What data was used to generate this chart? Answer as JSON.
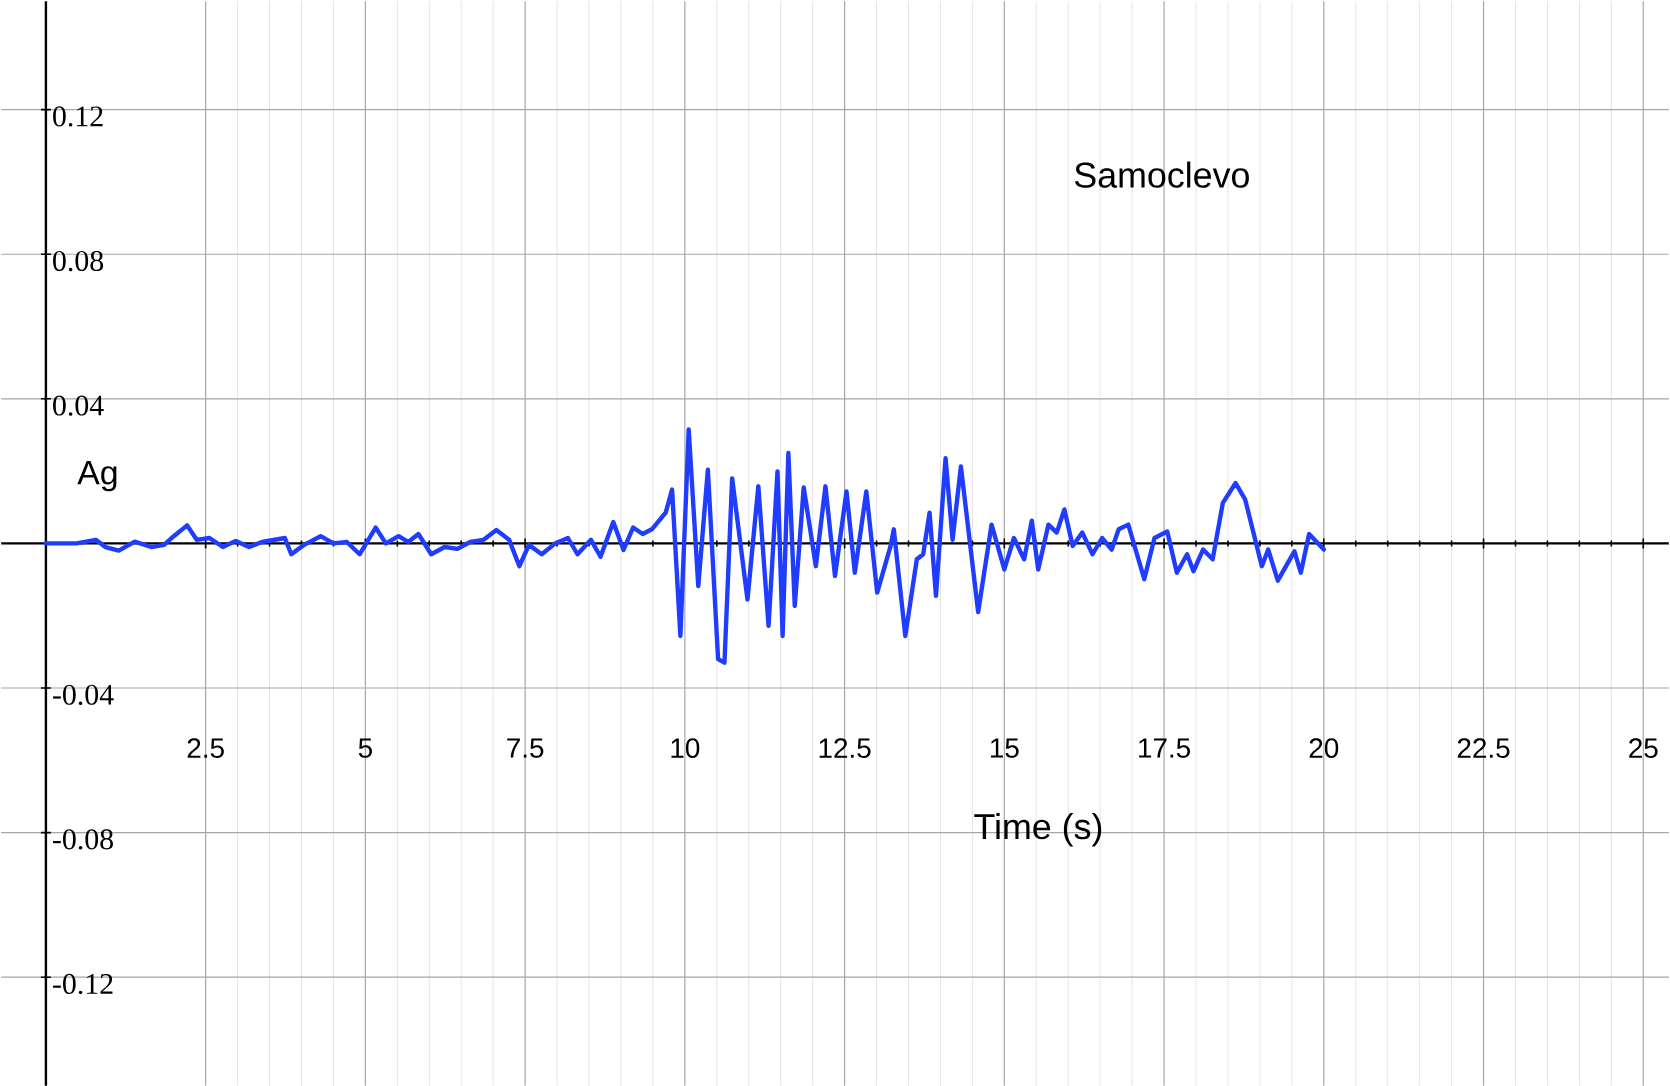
{
  "chart_data": {
    "type": "line",
    "title": "Samoclevo",
    "xlabel": "Time (s)",
    "ylabel": "Ag",
    "xlim": [
      -0.7,
      25.4
    ],
    "ylim": [
      -0.15,
      0.15
    ],
    "xticks": [
      2.5,
      5,
      7.5,
      10,
      12.5,
      15,
      17.5,
      20,
      22.5,
      25
    ],
    "yticks": [
      -0.12,
      -0.08,
      -0.04,
      0.04,
      0.08,
      0.12
    ],
    "grid": true,
    "marker": "none",
    "line_style": "solid",
    "series": [
      {
        "color": "#1f3cff",
        "x": [
          0.0,
          0.48,
          0.78,
          0.93,
          1.14,
          1.39,
          1.65,
          1.85,
          2.0,
          2.21,
          2.36,
          2.56,
          2.77,
          2.97,
          3.18,
          3.38,
          3.74,
          3.84,
          4.04,
          4.3,
          4.5,
          4.71,
          4.91,
          5.16,
          5.32,
          5.52,
          5.67,
          5.83,
          6.03,
          6.24,
          6.44,
          6.64,
          6.85,
          7.05,
          7.25,
          7.41,
          7.56,
          7.76,
          7.97,
          8.17,
          8.32,
          8.53,
          8.68,
          8.88,
          9.04,
          9.19,
          9.34,
          9.49,
          9.7,
          9.8,
          9.93,
          10.06,
          10.21,
          10.36,
          10.52,
          10.62,
          10.74,
          10.98,
          11.15,
          11.31,
          11.45,
          11.53,
          11.62,
          11.72,
          11.86,
          12.05,
          12.2,
          12.35,
          12.53,
          12.66,
          12.84,
          13.01,
          13.22,
          13.27,
          13.45,
          13.63,
          13.73,
          13.83,
          13.93,
          14.08,
          14.19,
          14.32,
          14.59,
          14.8,
          15.0,
          15.15,
          15.31,
          15.43,
          15.53,
          15.69,
          15.82,
          15.94,
          16.07,
          16.22,
          16.38,
          16.53,
          16.68,
          16.79,
          16.94,
          17.19,
          17.35,
          17.55,
          17.7,
          17.86,
          17.96,
          18.11,
          18.26,
          18.42,
          18.62,
          18.77,
          19.03,
          19.13,
          19.28,
          19.54,
          19.64,
          19.77,
          20.0
        ],
        "values": [
          0,
          0,
          0.001,
          -0.001,
          -0.002,
          0.0005,
          -0.001,
          -0.0004,
          0.002,
          0.005,
          0.001,
          0.0015,
          -0.001,
          0.0007,
          -0.001,
          0.0004,
          0.0015,
          -0.003,
          -0.0004,
          0.002,
          0,
          0.0004,
          -0.003,
          0.0044,
          0,
          0.002,
          0.0004,
          0.0026,
          -0.003,
          -0.001,
          -0.0015,
          0.0004,
          0.001,
          0.0037,
          0.001,
          -0.0063,
          -0.0004,
          -0.003,
          0,
          0.0015,
          -0.003,
          0.001,
          -0.0037,
          0.0059,
          -0.0018,
          0.0044,
          0.0026,
          0.004,
          0.0085,
          0.0149,
          -0.0256,
          0.0315,
          -0.0118,
          0.0204,
          -0.032,
          -0.033,
          0.018,
          -0.0155,
          0.0158,
          -0.0228,
          0.0199,
          -0.0256,
          0.025,
          -0.0173,
          0.0155,
          -0.0063,
          0.0158,
          -0.009,
          0.0144,
          -0.0081,
          0.0144,
          -0.0136,
          -0.0007,
          0.0039,
          -0.0256,
          -0.0044,
          -0.003,
          0.0085,
          -0.0145,
          0.0236,
          0.001,
          0.0213,
          -0.019,
          0.0052,
          -0.0072,
          0.0015,
          -0.0044,
          0.0063,
          -0.0072,
          0.0052,
          0.003,
          0.0094,
          -0.0007,
          0.003,
          -0.003,
          0.0015,
          -0.0017,
          0.0039,
          0.0052,
          -0.0099,
          0.0015,
          0.0033,
          -0.0081,
          -0.003,
          -0.0077,
          -0.0017,
          -0.0044,
          0.0112,
          0.0167,
          0.0121,
          -0.0063,
          -0.0017,
          -0.0103,
          -0.0022,
          -0.0081,
          0.0026,
          -0.0017
        ]
      }
    ]
  }
}
